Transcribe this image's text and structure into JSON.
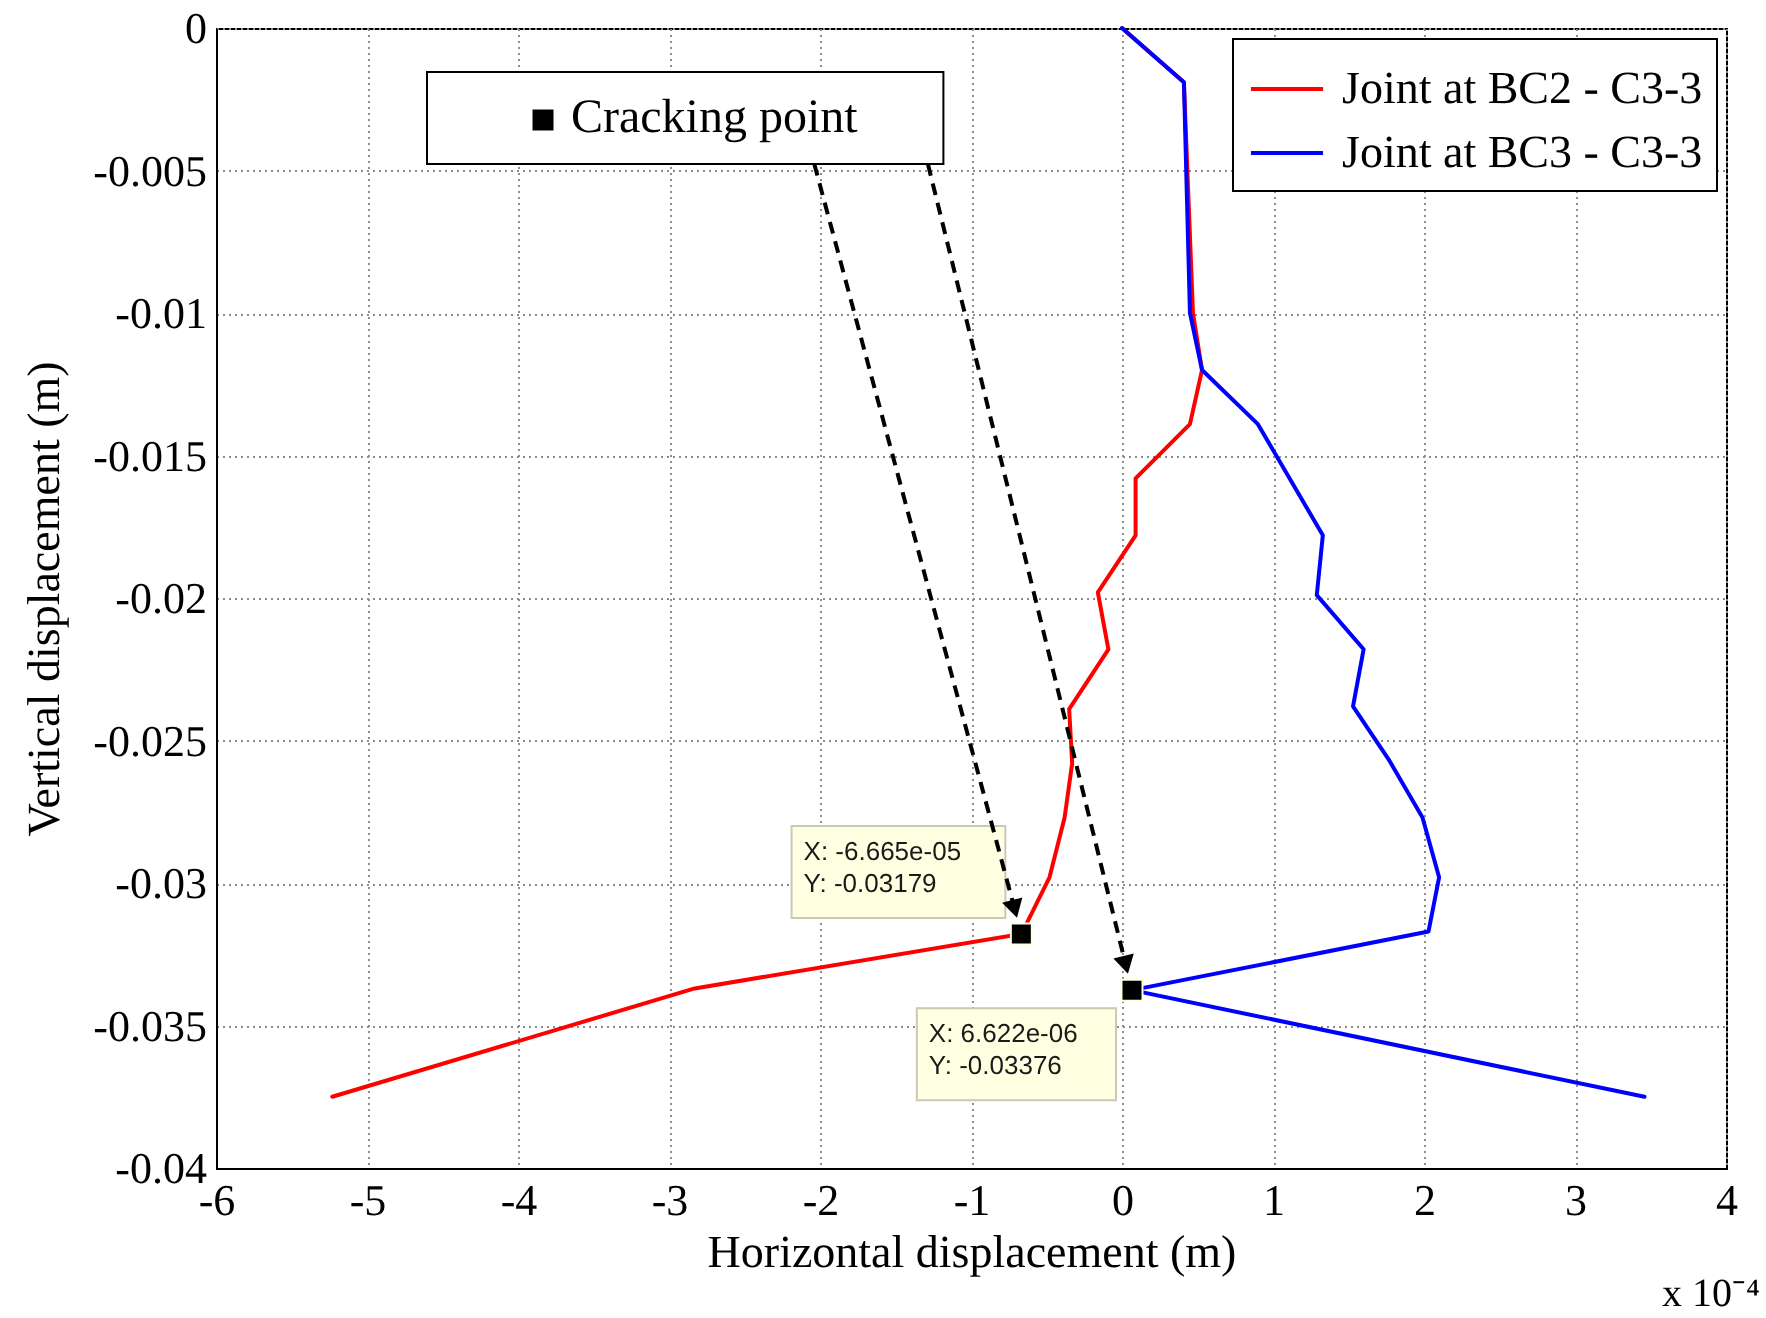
{
  "chart_data": {
    "type": "line",
    "xlabel": "Horizontal displacement (m)",
    "ylabel": "Vertical displacement (m)",
    "xlim": [
      -6,
      4
    ],
    "xticks": [
      -6,
      -5,
      -4,
      -3,
      -2,
      -1,
      0,
      1,
      2,
      3,
      4
    ],
    "ylim": [
      -0.04,
      0
    ],
    "yticks": [
      -0.04,
      -0.035,
      -0.03,
      -0.025,
      -0.02,
      -0.015,
      -0.01,
      -0.005,
      0
    ],
    "grid": true,
    "legend": "top right",
    "series": [
      {
        "name": "Joint at BC2 - C3-3",
        "color": "#ff0000",
        "x": [
          0,
          0.41,
          0.47,
          0.53,
          0.45,
          0.09,
          0.09,
          -0.16,
          -0.09,
          -0.35,
          -0.33,
          -0.38,
          -0.48,
          -0.6665,
          -2.83,
          -5.23
        ],
        "values": [
          0,
          -0.0019,
          -0.01,
          -0.012,
          -0.0139,
          -0.0158,
          -0.0178,
          -0.0198,
          -0.0218,
          -0.0239,
          -0.0258,
          -0.0277,
          -0.0298,
          -0.03179,
          -0.0337,
          -0.0375
        ]
      },
      {
        "name": "Joint at BC3 - C3-3",
        "color": "#0000ff",
        "x": [
          0,
          0.41,
          0.45,
          0.53,
          0.9,
          1.33,
          1.29,
          1.6,
          1.53,
          1.77,
          1.99,
          2.1,
          2.03,
          0.06622,
          3.46
        ],
        "values": [
          0,
          -0.0019,
          -0.01,
          -0.012,
          -0.0139,
          -0.0178,
          -0.0199,
          -0.0218,
          -0.0238,
          -0.0257,
          -0.0277,
          -0.0298,
          -0.0317,
          -0.03376,
          -0.0375
        ]
      },
      {
        "name": "Cracking point",
        "color": "#000000",
        "type": "scatter",
        "marker": "square",
        "x": [
          -0.6665,
          0.06622
        ],
        "values": [
          -0.03179,
          -0.03376
        ]
      }
    ],
    "annotations": [
      {
        "text": "X: -6.665e-05\nY: -0.03179",
        "x": -0.6665,
        "y": -0.03179
      },
      {
        "text": "X: 6.622e-06\nY: -0.03376",
        "x": 0.06622,
        "y": -0.03376
      },
      "x 10⁻⁴"
    ]
  }
}
